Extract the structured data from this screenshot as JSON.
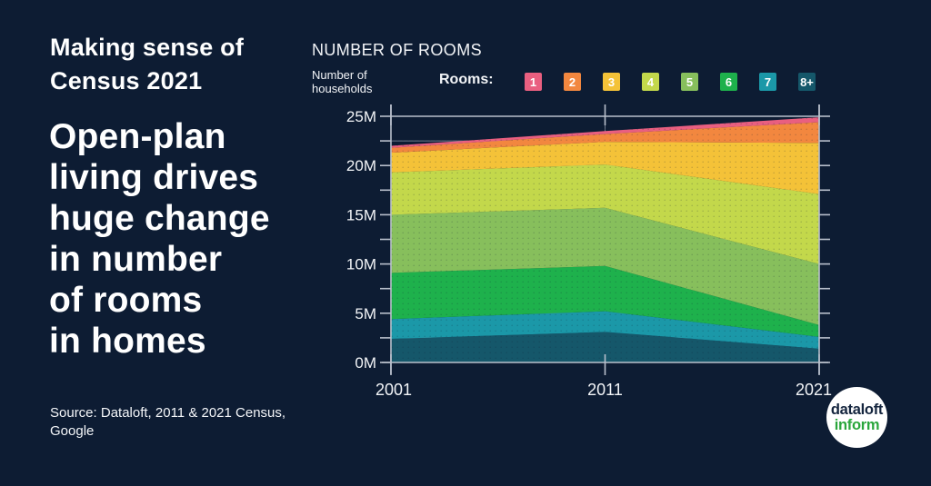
{
  "page": {
    "background": "#0d1c33"
  },
  "left_panel": {
    "kicker_lines": [
      "Making sense of",
      "Census 2021"
    ],
    "headline_lines": [
      "Open-plan",
      "living drives",
      "huge change",
      "in number",
      "of rooms",
      "in homes"
    ],
    "source_lines": [
      "Source: Dataloft, 2011 & 2021 Census,",
      "Google"
    ]
  },
  "chart_data": {
    "type": "area",
    "stacked": true,
    "title": "NUMBER OF ROOMS",
    "ylabel_lines": [
      "Number of",
      "households"
    ],
    "legend_label": "Rooms:",
    "units": "millions of households",
    "x": [
      2001,
      2011,
      2021
    ],
    "x_tick_labels": [
      "2001",
      "2011",
      "2021"
    ],
    "ylim": [
      0,
      25
    ],
    "y_major_step": 5,
    "y_minor_step": 2.5,
    "y_tick_suffix": "M",
    "grid": true,
    "legend_position": "top",
    "series": [
      {
        "name": "1",
        "color": "#e95f80",
        "values": [
          0.2,
          0.3,
          0.5
        ]
      },
      {
        "name": "2",
        "color": "#f2873f",
        "values": [
          0.5,
          0.8,
          2.1
        ]
      },
      {
        "name": "3",
        "color": "#f4c238",
        "values": [
          2.0,
          2.3,
          5.2
        ]
      },
      {
        "name": "4",
        "color": "#c3d84b",
        "values": [
          4.3,
          4.4,
          7.1
        ]
      },
      {
        "name": "5",
        "color": "#87bf5c",
        "values": [
          5.9,
          5.9,
          6.2
        ]
      },
      {
        "name": "6",
        "color": "#1eb14c",
        "values": [
          4.7,
          4.6,
          1.2
        ]
      },
      {
        "name": "7",
        "color": "#1b98a8",
        "values": [
          2.0,
          2.1,
          1.2
        ]
      },
      {
        "name": "8+",
        "color": "#15576a",
        "values": [
          2.4,
          3.1,
          1.4
        ]
      }
    ],
    "stack_order_bottom_to_top": [
      "8+",
      "7",
      "6",
      "5",
      "4",
      "3",
      "2",
      "1"
    ]
  },
  "logo": {
    "line1": "dataloft",
    "line2": "inform"
  }
}
